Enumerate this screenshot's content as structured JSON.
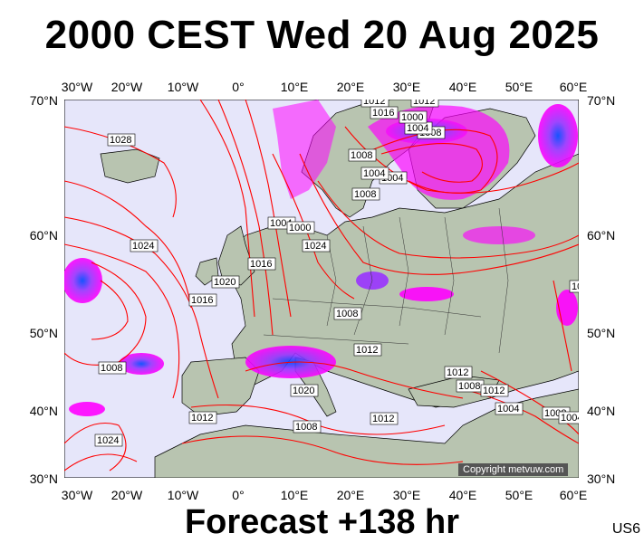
{
  "title": "2000 CEST Wed 20 Aug 2025",
  "footer": "Forecast +138 hr",
  "model_code": "US6",
  "copyright": "Copyright metvuw.com",
  "longitude_ticks": [
    "30°W",
    "20°W",
    "10°W",
    "0°",
    "10°E",
    "20°E",
    "30°E",
    "40°E",
    "50°E",
    "60°E"
  ],
  "latitude_ticks": [
    "70°N",
    "60°N",
    "50°N",
    "40°N",
    "30°N"
  ],
  "isobar_labels": [
    "1028",
    "1024",
    "1020",
    "1016",
    "1012",
    "1008",
    "1004",
    "1000",
    "1024",
    "1020",
    "1012",
    "1016",
    "1012",
    "1008",
    "1004",
    "1012",
    "1008",
    "1004",
    "1008",
    "1004",
    "1008",
    "1012",
    "1024",
    "1012",
    "1008",
    "1012",
    "1004",
    "1008",
    "1004",
    "1008",
    "1000",
    "1008",
    "1016"
  ],
  "colors": {
    "background_sea": "#e6e6fa",
    "land": "#b8c4b0",
    "isobar": "#ff0000",
    "rain_light": "#ff00ff",
    "rain_heavy": "#0044ff",
    "coast": "#000000"
  }
}
